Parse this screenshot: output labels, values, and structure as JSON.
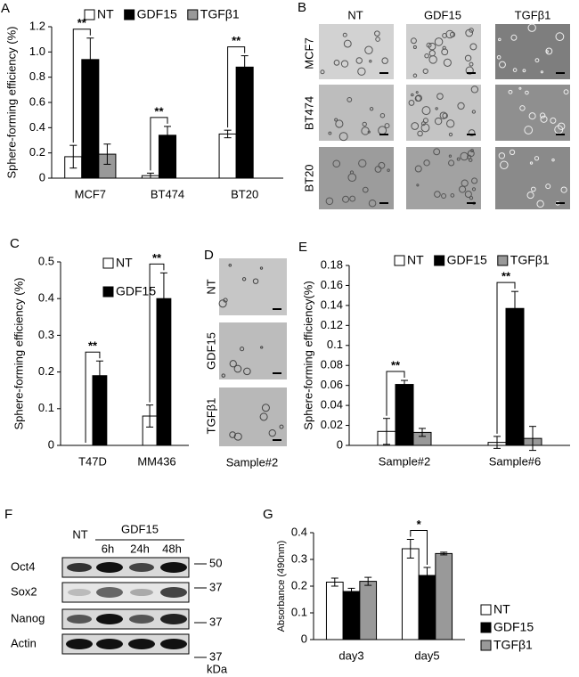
{
  "chart_data": [
    {
      "type": "bar",
      "panel": "A",
      "ylabel": "Sphere-forming efficiency (%)",
      "categories": [
        "MCF7",
        "BT474",
        "BT20"
      ],
      "series": [
        {
          "name": "NT",
          "color": "#ffffff",
          "values": [
            0.17,
            0.02,
            0.35
          ],
          "errors": [
            0.09,
            0.02,
            0.03
          ]
        },
        {
          "name": "GDF15",
          "color": "#000000",
          "values": [
            0.94,
            0.34,
            0.88
          ],
          "errors": [
            0.17,
            0.07,
            0.09
          ]
        },
        {
          "name": "TGFβ1",
          "color": "#999999",
          "values": [
            0.19,
            null,
            null
          ],
          "errors": [
            0.08,
            null,
            null
          ]
        }
      ],
      "significance": [
        "**",
        "**",
        "**"
      ],
      "ylim": [
        0,
        1.2
      ],
      "yticks": [
        0,
        0.2,
        0.4,
        0.6,
        0.8,
        {
          "value": 1,
          "label": "1.0"
        },
        1.2
      ],
      "grid": false,
      "legend": "top"
    },
    {
      "type": "bar",
      "panel": "C",
      "ylabel": "Sphere-forming efficiency (%)",
      "categories": [
        "T47D",
        "MM436"
      ],
      "series": [
        {
          "name": "NT",
          "color": "#ffffff",
          "values": [
            0,
            0.08
          ],
          "errors": [
            0,
            0.03
          ]
        },
        {
          "name": "GDF15",
          "color": "#000000",
          "values": [
            0.19,
            0.4
          ],
          "errors": [
            0.04,
            0.07
          ]
        }
      ],
      "significance": [
        "**",
        "**"
      ],
      "ylim": [
        0,
        0.5
      ],
      "yticks": [
        0,
        0.1,
        0.2,
        0.3,
        0.4,
        0.5
      ],
      "grid": false,
      "legend": "upper-left"
    },
    {
      "type": "bar",
      "panel": "E",
      "ylabel": "Sphere-forming efficiency(%)",
      "categories": [
        "Sample#2",
        "Sample#6"
      ],
      "series": [
        {
          "name": "NT",
          "color": "#ffffff",
          "values": [
            0.014,
            0.003
          ],
          "errors": [
            0.013,
            0.006
          ]
        },
        {
          "name": "GDF15",
          "color": "#000000",
          "values": [
            0.061,
            0.137
          ],
          "errors": [
            0.004,
            0.017
          ]
        },
        {
          "name": "TGFβ1",
          "color": "#999999",
          "values": [
            0.013,
            0.007
          ],
          "errors": [
            0.004,
            0.012
          ]
        }
      ],
      "significance": [
        "**",
        "**"
      ],
      "ylim": [
        0,
        0.18
      ],
      "yticks": [
        0,
        0.02,
        0.04,
        0.06,
        0.08,
        0.1,
        0.12,
        0.14,
        0.16,
        0.18
      ],
      "grid": false,
      "legend": "top"
    },
    {
      "type": "bar",
      "panel": "G",
      "ylabel": "Absorbance (490nm)",
      "categories": [
        "day3",
        "day5"
      ],
      "series": [
        {
          "name": "NT",
          "color": "#ffffff",
          "values": [
            0.215,
            0.34
          ],
          "errors": [
            0.015,
            0.035
          ]
        },
        {
          "name": "GDF15",
          "color": "#000000",
          "values": [
            0.18,
            0.24
          ],
          "errors": [
            0.012,
            0.03
          ]
        },
        {
          "name": "TGFβ1",
          "color": "#999999",
          "values": [
            0.218,
            0.322
          ],
          "errors": [
            0.015,
            0.005
          ]
        }
      ],
      "significance": [
        null,
        "*"
      ],
      "ylim": [
        0,
        0.4
      ],
      "yticks": [
        0,
        0.1,
        0.2,
        0.3,
        0.4
      ],
      "grid": false,
      "legend": "right"
    }
  ],
  "panel_b": {
    "label": "B",
    "columns": [
      "NT",
      "GDF15",
      "TGFβ1"
    ],
    "rows": [
      "MCF7",
      "BT474",
      "BT20"
    ]
  },
  "panel_d": {
    "label": "D",
    "rows": [
      "NT",
      "GDF15",
      "TGFβ1"
    ],
    "caption": "Sample#2"
  },
  "panel_f": {
    "label": "F",
    "control": "NT",
    "treatment": "GDF15",
    "times": [
      "6h",
      "24h",
      "48h"
    ],
    "proteins": [
      "Oct4",
      "Sox2",
      "Nanog",
      "Actin"
    ],
    "markers": [
      "50",
      "37",
      "37",
      "37"
    ],
    "unit": "kDa"
  }
}
